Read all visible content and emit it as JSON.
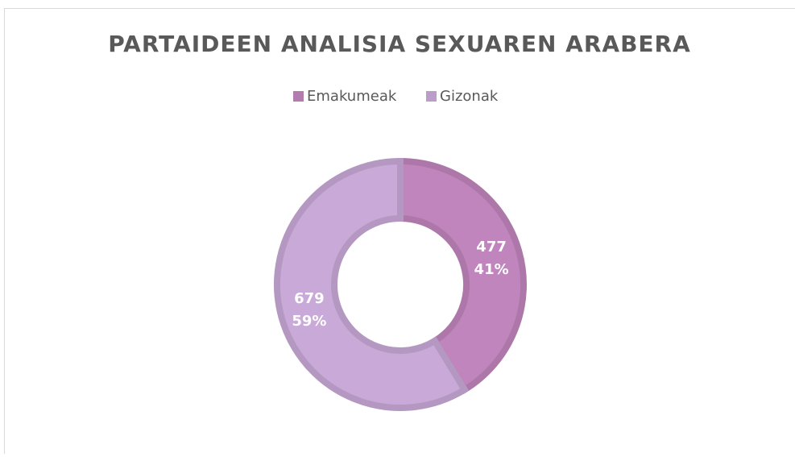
{
  "chart_data": {
    "type": "donut",
    "title": "PARTAIDEEN ANALISIA SEXUAREN ARABERA",
    "categories": [
      "Emakumeak",
      "Gizonak"
    ],
    "values": [
      477,
      679
    ],
    "percent_labels": [
      "41%",
      "59%"
    ],
    "colors": [
      "#c085bc",
      "#c8a9d7"
    ],
    "legend": "top"
  }
}
